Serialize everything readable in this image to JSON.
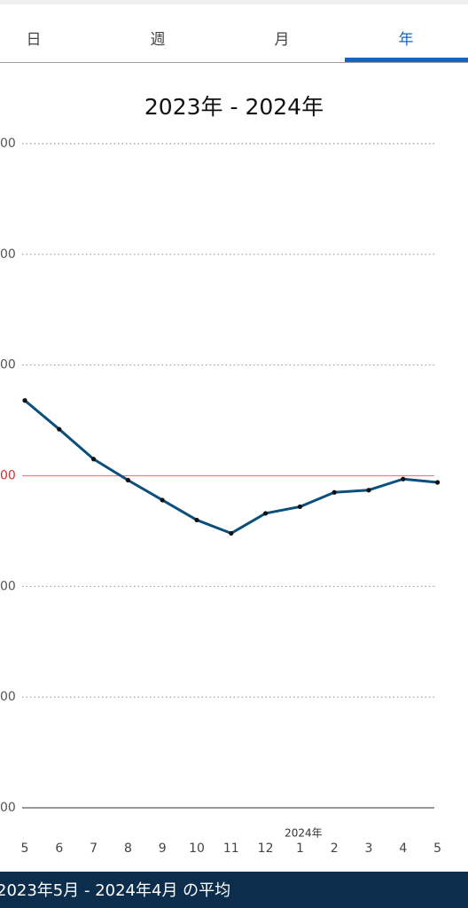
{
  "tabs": [
    "日",
    "週",
    "月",
    "年"
  ],
  "selected_tab": 3,
  "chart_data": {
    "type": "line",
    "title": "2023年 - 2024年",
    "categories": [
      "5",
      "6",
      "7",
      "8",
      "9",
      "10",
      "11",
      "12",
      "1",
      "2",
      "3",
      "4",
      "5"
    ],
    "annotation": "2024年",
    "series": [
      {
        "color": "#0b4f7c",
        "values": [
          3.68,
          3.42,
          3.15,
          2.96,
          2.78,
          2.6,
          2.48,
          2.66,
          2.72,
          2.85,
          2.87,
          2.97,
          2.94
        ]
      }
    ],
    "ylim": [
      0,
      6
    ],
    "yticks": [
      {
        "value": 0,
        "label": "00"
      },
      {
        "value": 1,
        "label": "00"
      },
      {
        "value": 2,
        "label": "00"
      },
      {
        "value": 3,
        "label": "00"
      },
      {
        "value": 4,
        "label": "00"
      },
      {
        "value": 5,
        "label": "00"
      },
      {
        "value": 6,
        "label": "00"
      }
    ],
    "reference_line": 3,
    "reference_color": "#f08080",
    "grid": true
  },
  "footer": "2023年5月 - 2024年4月 の平均"
}
